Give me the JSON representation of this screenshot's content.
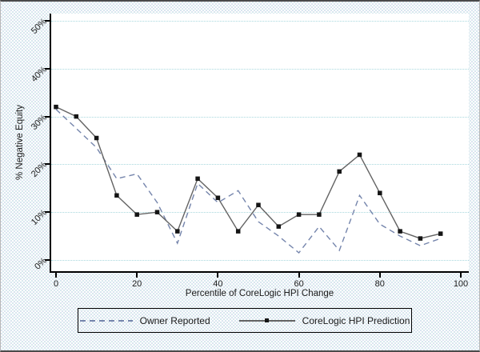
{
  "figure": {
    "y_axis_title": "% Negative Equity",
    "x_axis_title": "Percentile of CoreLogic HPI Change"
  },
  "legend": {
    "items": [
      {
        "label": "Owner Reported",
        "style": "dashed",
        "color": "#7585ac"
      },
      {
        "label": "CoreLogic HPI Prediction",
        "style": "solid-with-marker",
        "color": "#636363"
      }
    ]
  },
  "colors": {
    "owner_reported_line": "#7585ac",
    "corelogic_line": "#636363",
    "corelogic_marker": "#151515",
    "gridline": "#a8d8de",
    "axis": "#000000",
    "plot_background": "#ffffff",
    "outer_background": "#e9eef4"
  },
  "chart_data": {
    "type": "line",
    "title": "",
    "xlabel": "Percentile of CoreLogic HPI Change",
    "ylabel": "% Negative Equity",
    "xlim": [
      0,
      100
    ],
    "ylim": [
      0,
      50
    ],
    "x_ticks": [
      0,
      20,
      40,
      60,
      80,
      100
    ],
    "x_tick_labels": [
      "0",
      "20",
      "40",
      "60",
      "80",
      "100"
    ],
    "y_ticks": [
      0,
      10,
      20,
      30,
      40,
      50
    ],
    "y_tick_labels": [
      "0%",
      "10%",
      "20%",
      "30%",
      "40%",
      "50%"
    ],
    "grid": "horizontal-dotted",
    "legend_position": "bottom",
    "x": [
      0,
      5,
      10,
      15,
      20,
      25,
      30,
      35,
      40,
      45,
      50,
      55,
      60,
      65,
      70,
      75,
      80,
      85,
      90,
      95
    ],
    "series": [
      {
        "name": "Owner Reported",
        "style": "dashed",
        "marker": "none",
        "color": "#7585ac",
        "values": [
          31.5,
          27.5,
          23.5,
          17,
          18,
          12,
          3.5,
          16,
          12,
          14.5,
          8,
          5,
          1.5,
          7,
          2,
          13.5,
          7.5,
          5,
          3,
          4.5
        ]
      },
      {
        "name": "CoreLogic HPI Prediction",
        "style": "solid",
        "marker": "square",
        "color": "#636363",
        "values": [
          32,
          30,
          25.5,
          13.5,
          9.5,
          10,
          6,
          17,
          13,
          6,
          11.5,
          7,
          9.5,
          9.5,
          18.5,
          22,
          14,
          6,
          4.5,
          5.5
        ]
      }
    ]
  }
}
